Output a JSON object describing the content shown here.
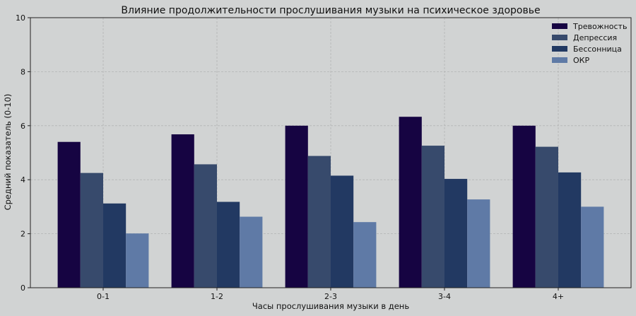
{
  "chart_data": {
    "type": "bar",
    "title": "Влияние продолжительности прослушивания музыки на психическое здоровье",
    "xlabel": "Часы прослушивания музыки в день",
    "ylabel": "Средний показатель (0-10)",
    "categories": [
      "0-1",
      "1-2",
      "2-3",
      "3-4",
      "4+"
    ],
    "series": [
      {
        "name": "Тревожность",
        "color": "#160442",
        "values": [
          5.4,
          5.68,
          6.0,
          6.33,
          6.0
        ]
      },
      {
        "name": "Депрессия",
        "color": "#374a6c",
        "values": [
          4.25,
          4.57,
          4.88,
          5.26,
          5.22
        ]
      },
      {
        "name": "Бессонница",
        "color": "#223962",
        "values": [
          3.12,
          3.18,
          4.15,
          4.03,
          4.27
        ]
      },
      {
        "name": "ОКР",
        "color": "#5f7aa6",
        "values": [
          2.01,
          2.63,
          2.43,
          3.27,
          3.0
        ]
      }
    ],
    "ylim": [
      0,
      10
    ],
    "yticks": [
      0,
      2,
      4,
      6,
      8,
      10
    ],
    "grid": true,
    "legend": "top-right"
  }
}
